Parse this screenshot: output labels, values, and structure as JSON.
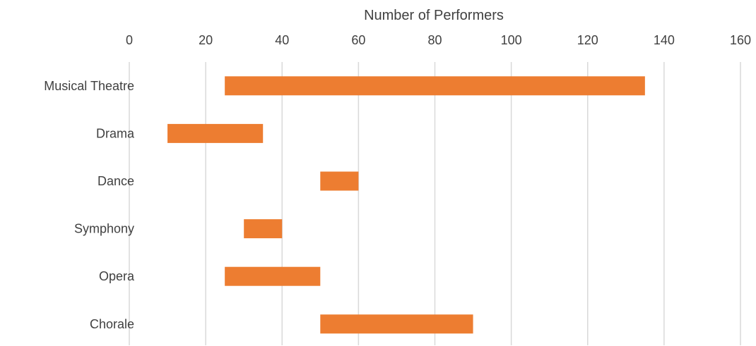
{
  "chart_data": {
    "type": "bar",
    "orientation": "horizontal",
    "subtype": "floating-range",
    "title": "",
    "xlabel": "Number of Performers",
    "ylabel": "",
    "x_axis_position": "top",
    "xlim": [
      0,
      160
    ],
    "xticks": [
      0,
      20,
      40,
      60,
      80,
      100,
      120,
      140,
      160
    ],
    "grid": true,
    "legend": "none",
    "categories": [
      "Musical Theatre",
      "Drama",
      "Dance",
      "Symphony",
      "Opera",
      "Chorale"
    ],
    "ranges": [
      {
        "category": "Musical Theatre",
        "min": 25,
        "max": 135
      },
      {
        "category": "Drama",
        "min": 10,
        "max": 35
      },
      {
        "category": "Dance",
        "min": 50,
        "max": 60
      },
      {
        "category": "Symphony",
        "min": 30,
        "max": 40
      },
      {
        "category": "Opera",
        "min": 25,
        "max": 50
      },
      {
        "category": "Chorale",
        "min": 50,
        "max": 90
      }
    ],
    "colors": {
      "bar": "#ED7D31",
      "grid": "#D9D9D9",
      "text": "#404040"
    }
  }
}
